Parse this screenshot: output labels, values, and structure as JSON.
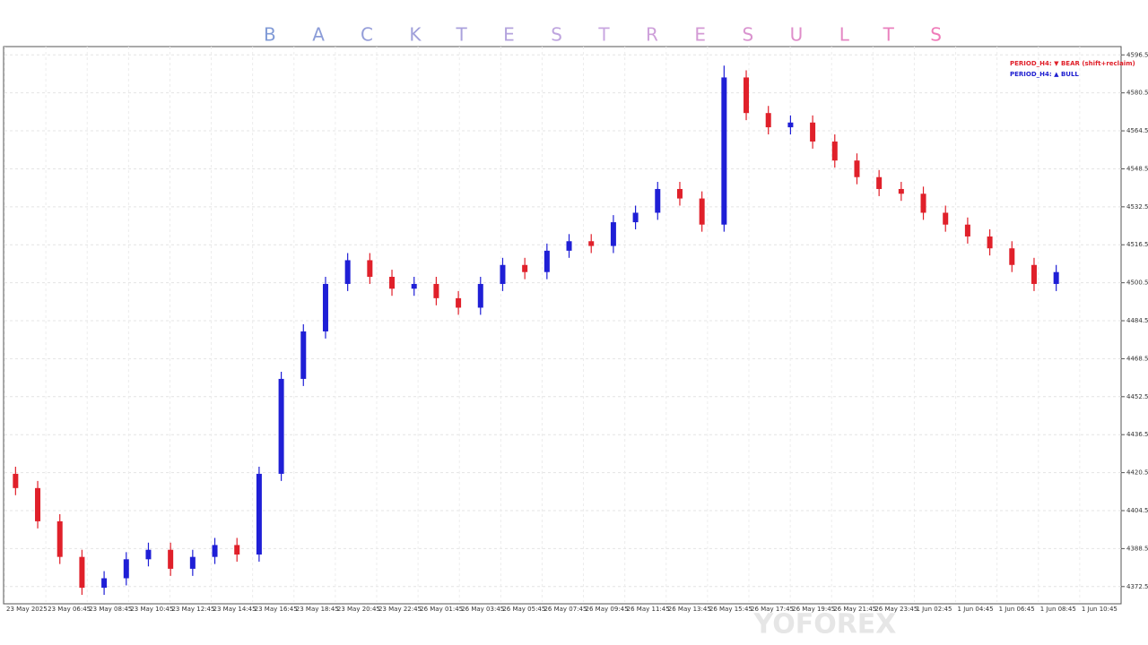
{
  "chart_data": {
    "type": "candlestick",
    "title": "BACKTESTRESULTS",
    "legend": [
      "PERIOD_H4: ▼ BEAR (shift+reclaim)",
      "PERIOD_H4: ▲ BULL"
    ],
    "legend_colors": [
      "#e0202a",
      "#2020d0"
    ],
    "watermark": "YOFOREX",
    "up_color": "#1f1fd6",
    "down_color": "#e0202a",
    "grid": true,
    "ylim": [
      4366,
      4600
    ],
    "yticks": [
      {
        "value": 4372.5,
        "label": "4372.50"
      },
      {
        "value": 4388.5,
        "label": "4388.50"
      },
      {
        "value": 4404.5,
        "label": "4404.50"
      },
      {
        "value": 4420.5,
        "label": "4420.50"
      },
      {
        "value": 4436.5,
        "label": "4436.50"
      },
      {
        "value": 4452.5,
        "label": "4452.50"
      },
      {
        "value": 4468.5,
        "label": "4468.50"
      },
      {
        "value": 4484.5,
        "label": "4484.50"
      },
      {
        "value": 4500.5,
        "label": "4500.50"
      },
      {
        "value": 4516.5,
        "label": "4516.50"
      },
      {
        "value": 4532.5,
        "label": "4532.50"
      },
      {
        "value": 4548.5,
        "label": "4548.50"
      },
      {
        "value": 4564.5,
        "label": "4564.50"
      },
      {
        "value": 4580.5,
        "label": "4580.50"
      },
      {
        "value": 4596.5,
        "label": "4596.50"
      }
    ],
    "xlabels": [
      "23 May 2025",
      "23 May 06:45",
      "23 May 08:45",
      "23 May 10:45",
      "23 May 12:45",
      "23 May 14:45",
      "23 May 16:45",
      "23 May 18:45",
      "23 May 20:45",
      "23 May 22:45",
      "26 May 01:45",
      "26 May 03:45",
      "26 May 05:45",
      "26 May 07:45",
      "26 May 09:45",
      "26 May 11:45",
      "26 May 13:45",
      "26 May 15:45",
      "26 May 17:45",
      "26 May 19:45",
      "26 May 21:45",
      "26 May 23:45",
      "1 Jun 02:45",
      "1 Jun 04:45",
      "1 Jun 06:45",
      "1 Jun 08:45",
      "1 Jun 10:45"
    ],
    "open": [
      4420,
      4414,
      4400,
      4385,
      4372,
      4376,
      4384,
      4388,
      4380,
      4385,
      4390,
      4386,
      4420,
      4460,
      4480,
      4500,
      4510,
      4503,
      4498,
      4500,
      4494,
      4490,
      4500,
      4508,
      4505,
      4514,
      4518,
      4516,
      4526,
      4530,
      4540,
      4536,
      4525,
      4587,
      4572,
      4566,
      4568,
      4560,
      4552,
      4545,
      4540,
      4538,
      4530,
      4525,
      4520,
      4515,
      4508,
      4500
    ],
    "high": [
      4423,
      4417,
      4403,
      4388,
      4379,
      4387,
      4391,
      4391,
      4388,
      4393,
      4393,
      4423,
      4463,
      4483,
      4503,
      4513,
      4513,
      4506,
      4503,
      4503,
      4497,
      4503,
      4511,
      4511,
      4517,
      4521,
      4521,
      4529,
      4533,
      4543,
      4543,
      4539,
      4592,
      4590,
      4575,
      4571,
      4571,
      4563,
      4555,
      4548,
      4543,
      4541,
      4533,
      4528,
      4523,
      4518,
      4511,
      4508
    ],
    "low": [
      4411,
      4397,
      4382,
      4369,
      4369,
      4373,
      4381,
      4377,
      4377,
      4382,
      4383,
      4383,
      4417,
      4457,
      4477,
      4497,
      4500,
      4495,
      4495,
      4491,
      4487,
      4487,
      4497,
      4502,
      4502,
      4511,
      4513,
      4513,
      4523,
      4527,
      4533,
      4522,
      4522,
      4569,
      4563,
      4563,
      4557,
      4549,
      4542,
      4537,
      4535,
      4527,
      4522,
      4517,
      4512,
      4505,
      4497,
      4497
    ],
    "close": [
      4414,
      4400,
      4385,
      4372,
      4376,
      4384,
      4388,
      4380,
      4385,
      4390,
      4386,
      4420,
      4460,
      4480,
      4500,
      4510,
      4503,
      4498,
      4500,
      4494,
      4490,
      4500,
      4508,
      4505,
      4514,
      4518,
      4516,
      4526,
      4530,
      4540,
      4536,
      4525,
      4587,
      4572,
      4566,
      4568,
      4560,
      4552,
      4545,
      4540,
      4538,
      4530,
      4525,
      4520,
      4515,
      4508,
      4500,
      4505
    ]
  }
}
